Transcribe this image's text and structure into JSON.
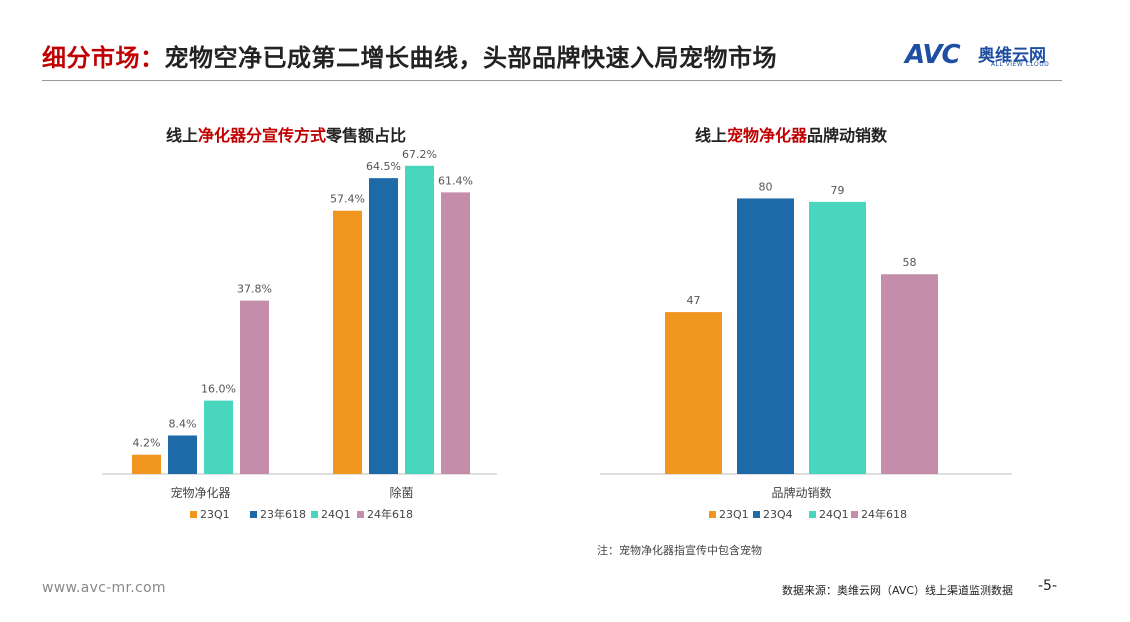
{
  "header": {
    "title_prefix": "细分市场：",
    "title_main": "宠物空净已成第二增长曲线，头部品牌快速入局宠物市场",
    "logo": {
      "mark": "AVC",
      "name_cn": "奥维云网",
      "name_en": "ALL VIEW CLOUD",
      "icon": "avc-logo-icon"
    }
  },
  "colors": {
    "title_accent": "#c00000",
    "logo": "#1f4fa3",
    "series": [
      "#f0951e",
      "#1e6aa8",
      "#48d6bf",
      "#c48eab"
    ]
  },
  "chart_data": [
    {
      "type": "bar",
      "title_parts": [
        "线上",
        "净化器分宣传方式",
        "零售额占比"
      ],
      "categories": [
        "宠物净化器",
        "除菌"
      ],
      "series": [
        {
          "name": "23Q1",
          "values": [
            4.2,
            57.4
          ],
          "labels": [
            "4.2%",
            "57.4%"
          ]
        },
        {
          "name": "23年618",
          "values": [
            8.4,
            64.5
          ],
          "labels": [
            "8.4%",
            "64.5%"
          ]
        },
        {
          "name": "24Q1",
          "values": [
            16.0,
            67.2
          ],
          "labels": [
            "16.0%",
            "67.2%"
          ]
        },
        {
          "name": "24年618",
          "values": [
            37.8,
            61.4
          ],
          "labels": [
            "37.8%",
            "61.4%"
          ]
        }
      ],
      "unit": "%",
      "ylim": [
        0,
        75
      ],
      "grid": false,
      "legend_position": "bottom"
    },
    {
      "type": "bar",
      "title_parts": [
        "线上",
        "宠物净化器",
        "品牌动销数"
      ],
      "categories": [
        "品牌动销数"
      ],
      "series": [
        {
          "name": "23Q1",
          "values": [
            47
          ],
          "labels": [
            "47"
          ]
        },
        {
          "name": "23Q4",
          "values": [
            80
          ],
          "labels": [
            "80"
          ]
        },
        {
          "name": "24Q1",
          "values": [
            79
          ],
          "labels": [
            "79"
          ]
        },
        {
          "name": "24年618",
          "values": [
            58
          ],
          "labels": [
            "58"
          ]
        }
      ],
      "ylim": [
        0,
        90
      ],
      "grid": false,
      "legend_position": "bottom"
    }
  ],
  "note": "注：宠物净化器指宣传中包含宠物",
  "footer": {
    "website": "www.avc-mr.com",
    "source": "数据来源：奥维云网（AVC）线上渠道监测数据",
    "page": "-5-"
  }
}
